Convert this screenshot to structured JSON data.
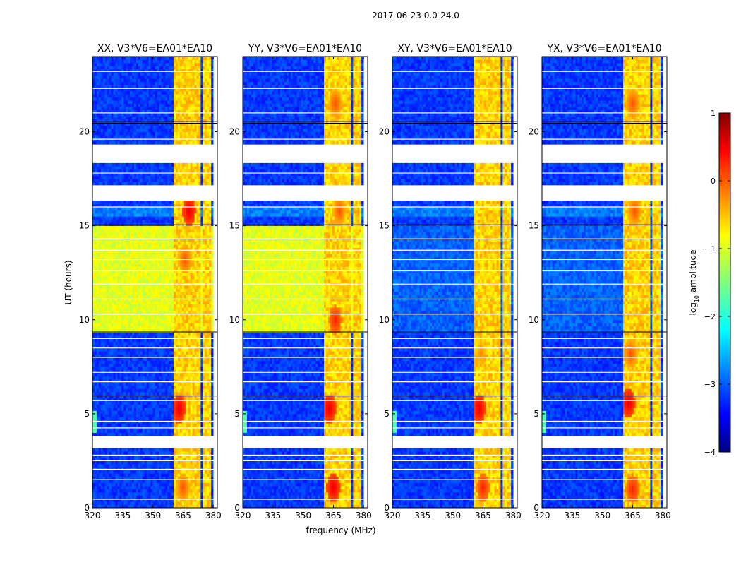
{
  "figure_title": "2017-06-23 0.0-24.0",
  "chart_data": {
    "type": "heatmap",
    "suptitle": "2017-06-23 0.0-24.0",
    "xlabel": "frequency (MHz)",
    "ylabel": "UT (hours)",
    "xlim": [
      320,
      382
    ],
    "ylim": [
      0,
      24
    ],
    "x_ticks": [
      320,
      335,
      350,
      365,
      380
    ],
    "x_tick_labels": [
      "320",
      "335",
      "350",
      "365",
      "380"
    ],
    "y_ticks": [
      0,
      5,
      10,
      15,
      20
    ],
    "y_tick_labels": [
      "0",
      "5",
      "10",
      "15",
      "20"
    ],
    "panels": [
      {
        "title": "XX, V3*V6=EA01*EA10",
        "quiet_level": 0.6,
        "spots": [
          [
            366,
            13.2,
            0.8
          ],
          [
            363,
            5.3,
            0.9
          ],
          [
            365,
            1.1,
            0.8
          ],
          [
            368,
            15.8,
            0.9
          ],
          [
            363,
            22.5,
            0.7
          ]
        ]
      },
      {
        "title": "YY, V3*V6=EA01*EA10",
        "quiet_level": 0.6,
        "spots": [
          [
            366,
            10.0,
            0.85
          ],
          [
            363,
            5.3,
            0.9
          ],
          [
            365,
            1.1,
            0.9
          ],
          [
            368,
            15.8,
            0.8
          ],
          [
            366,
            21.5,
            0.8
          ]
        ]
      },
      {
        "title": "XY, V3*V6=EA01*EA10",
        "quiet_level": 0.22,
        "spots": [
          [
            363,
            5.3,
            0.9
          ],
          [
            365,
            1.1,
            0.85
          ],
          [
            364,
            8.2,
            0.75
          ],
          [
            366,
            21.5,
            0.7
          ]
        ]
      },
      {
        "title": "YX, V3*V6=EA01*EA10",
        "quiet_level": 0.22,
        "spots": [
          [
            363,
            5.6,
            0.9
          ],
          [
            365,
            1.0,
            0.85
          ],
          [
            364,
            8.2,
            0.8
          ],
          [
            366,
            15.8,
            0.8
          ],
          [
            365,
            21.5,
            0.8
          ]
        ]
      }
    ],
    "rfi_bands_mhz": [
      [
        360,
        365
      ],
      [
        365,
        370
      ],
      [
        370,
        374
      ],
      [
        375,
        379
      ]
    ],
    "gaps_hours": [
      [
        3.2,
        3.9
      ],
      [
        16.3,
        17.2
      ],
      [
        18.3,
        19.4
      ]
    ],
    "colorbar": {
      "label": "log₁₀ amplitude",
      "label_base": "log",
      "label_sub": "10",
      "label_rest": " amplitude",
      "range": [
        -4,
        1
      ],
      "ticks": [
        1,
        0,
        -1,
        -2,
        -3,
        -4
      ],
      "tick_labels": [
        "1",
        "0",
        "−1",
        "−2",
        "−3",
        "−4"
      ],
      "colormap": "jet"
    }
  }
}
